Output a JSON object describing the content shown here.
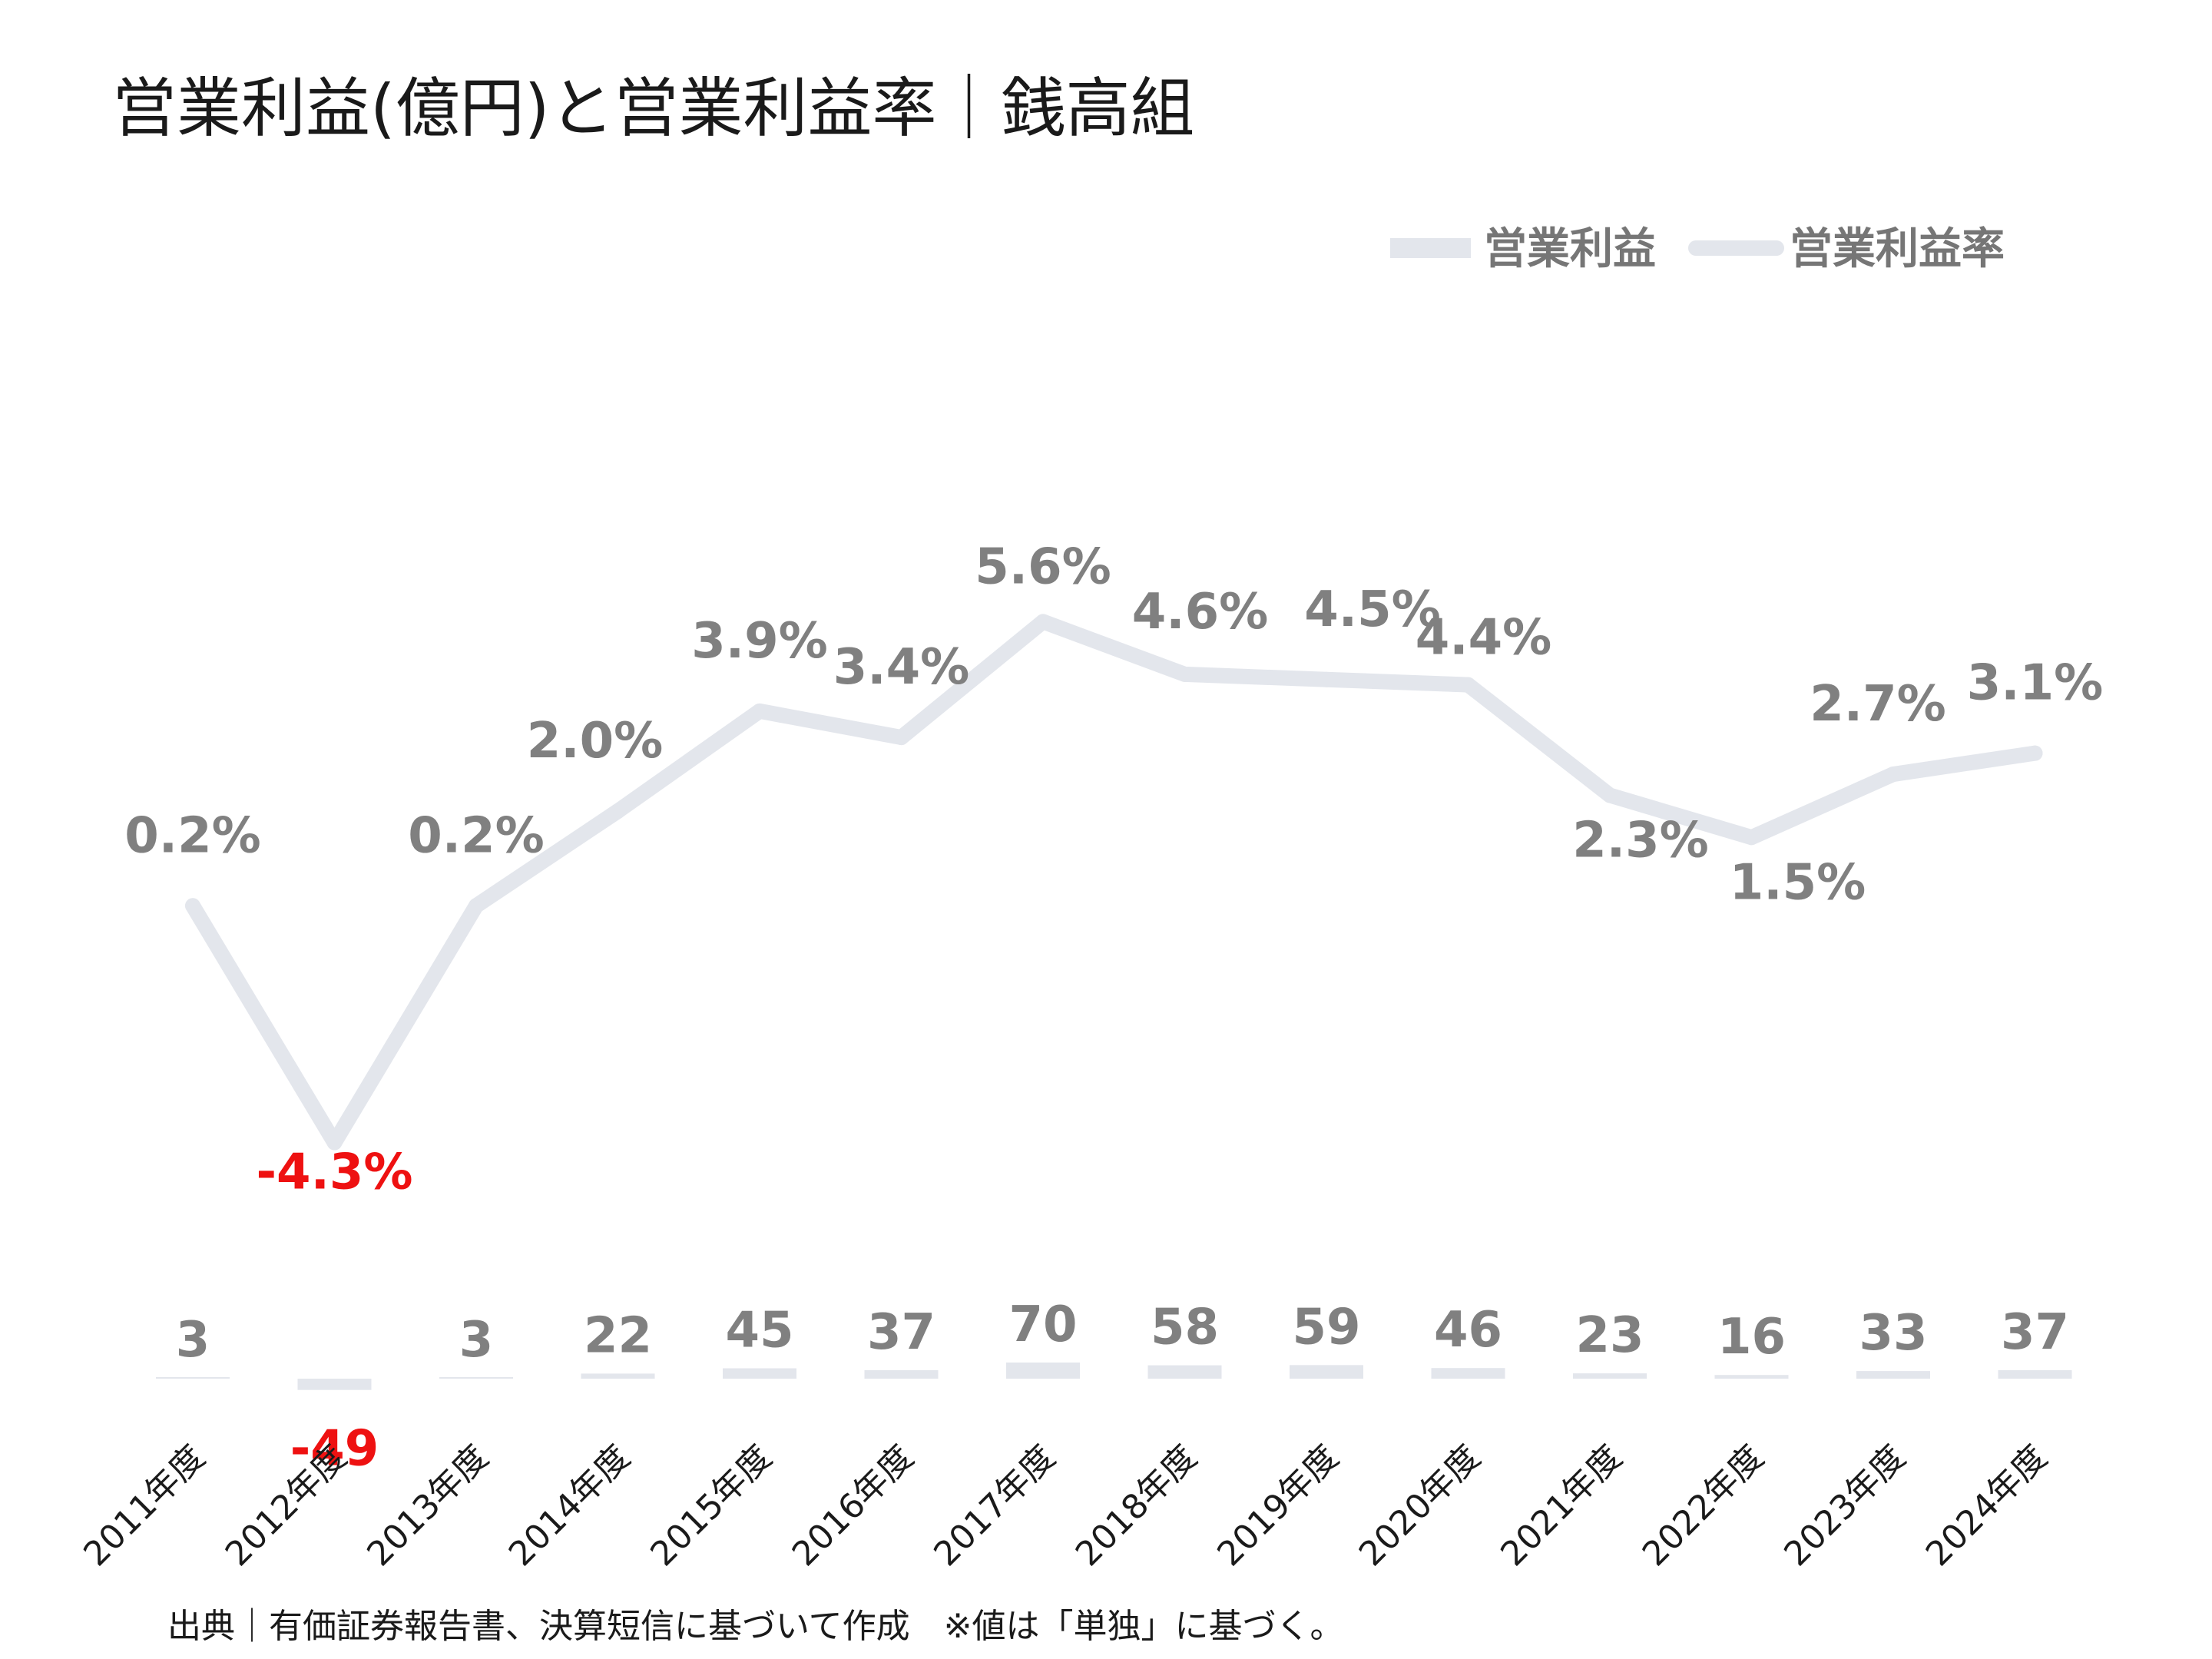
{
  "title": "営業利益(億円)と営業利益率｜銭高組",
  "source_note": "出典｜有価証券報告書、決算短信に基づいて作成　※値は「単独」に基づく。",
  "colors": {
    "bar": "#e3e6ec",
    "line": "#e3e6ec",
    "label": "#808080",
    "negative": "#ee1111",
    "text": "#1a1a1a"
  },
  "chart_data": {
    "type": "bar",
    "title": "営業利益(億円)と営業利益率｜銭高組",
    "categories": [
      "2011年度",
      "2012年度",
      "2013年度",
      "2014年度",
      "2015年度",
      "2016年度",
      "2017年度",
      "2018年度",
      "2019年度",
      "2020年度",
      "2021年度",
      "2022年度",
      "2023年度",
      "2024年度"
    ],
    "series": [
      {
        "name": "営業利益",
        "type": "bar",
        "values": [
          3,
          -49,
          3,
          22,
          45,
          37,
          70,
          58,
          59,
          46,
          23,
          16,
          33,
          37
        ],
        "labels": [
          "3",
          "-49",
          "3",
          "22",
          "45",
          "37",
          "70",
          "58",
          "59",
          "46",
          "23",
          "16",
          "33",
          "37"
        ]
      },
      {
        "name": "営業利益率",
        "type": "line",
        "values": [
          0.2,
          -4.3,
          0.2,
          2.0,
          3.9,
          3.4,
          5.6,
          4.6,
          4.5,
          4.4,
          2.3,
          1.5,
          2.7,
          3.1
        ],
        "labels": [
          "0.2%",
          "-4.3%",
          "0.2%",
          "2.0%",
          "3.9%",
          "3.4%",
          "5.6%",
          "4.6%",
          "4.5%",
          "4.4%",
          "2.3%",
          "1.5%",
          "2.7%",
          "3.1%"
        ]
      }
    ],
    "legend": "top-right",
    "grid": false
  }
}
